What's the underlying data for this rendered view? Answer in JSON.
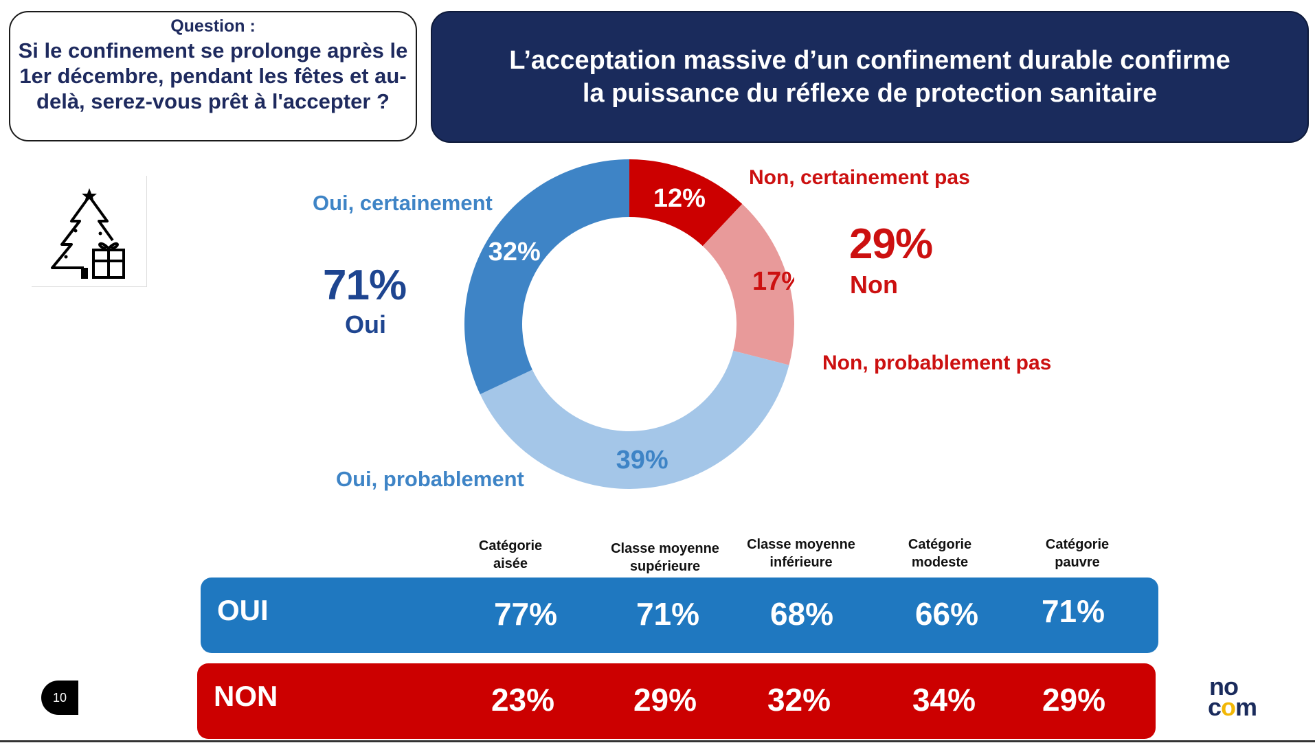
{
  "question": {
    "label": "Question :",
    "text": "Si le confinement se prolonge après le 1er décembre, pendant les fêtes et au-delà, serez-vous prêt à l'accepter ?"
  },
  "headline": {
    "line1": "L’acceptation massive d’un confinement durable confirme",
    "line2": "la puissance du réflexe de protection sanitaire"
  },
  "icon": "christmas-tree-gift-icon",
  "summary": {
    "oui_pct": "71%",
    "oui_label": "Oui",
    "non_pct": "29%",
    "non_label": "Non"
  },
  "chart_data": {
    "type": "pie",
    "donut": true,
    "start_angle_deg": 0,
    "slices": [
      {
        "label": "Non, certainement pas",
        "value": 12,
        "value_label": "12%",
        "color": "#cc0000",
        "value_color": "#ffffff"
      },
      {
        "label": "Non, probablement pas",
        "value": 17,
        "value_label": "17%",
        "color": "#e89a9a",
        "value_color": "#cc1010"
      },
      {
        "label": "Oui, probablement",
        "value": 39,
        "value_label": "39%",
        "color": "#a4c6e8",
        "value_color": "#3e84c6"
      },
      {
        "label": "Oui, certainement",
        "value": 32,
        "value_label": "32%",
        "color": "#3e84c6",
        "value_color": "#ffffff"
      }
    ]
  },
  "table": {
    "columns": [
      "Catégorie\naisée",
      "Classe moyenne\nsupérieure",
      "Classe moyenne\ninférieure",
      "Catégorie\nmodeste",
      "Catégorie\npauvre"
    ],
    "rows": [
      {
        "label": "OUI",
        "values": [
          "77%",
          "71%",
          "68%",
          "66%",
          "71%"
        ],
        "color": "#1f78c0"
      },
      {
        "label": "NON",
        "values": [
          "23%",
          "29%",
          "32%",
          "34%",
          "29%"
        ],
        "color": "#cc0000"
      }
    ]
  },
  "page_number": "10",
  "logo": {
    "line1": "no",
    "line2": "com",
    "colors": [
      "#1a2b5c",
      "#f2b705"
    ]
  }
}
